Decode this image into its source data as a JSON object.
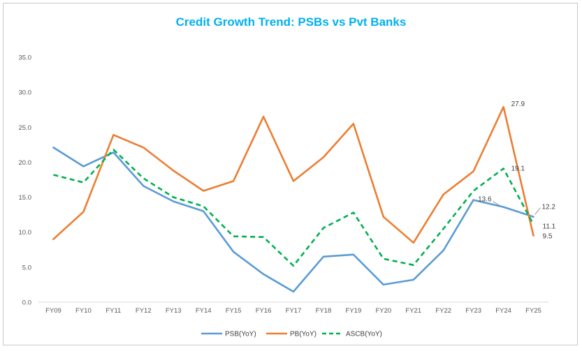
{
  "chart_data": {
    "type": "line",
    "title": "Credit Growth Trend: PSBs vs Pvt Banks",
    "xlabel": "",
    "ylabel": "",
    "ylim": [
      0,
      35
    ],
    "yticks": [
      "0.0",
      "5.0",
      "10.0",
      "15.0",
      "20.0",
      "25.0",
      "30.0",
      "35.0"
    ],
    "grid": false,
    "legend_position": "bottom",
    "categories": [
      "FY09",
      "FY10",
      "FY11",
      "FY12",
      "FY13",
      "FY14",
      "FY15",
      "FY16",
      "FY17",
      "FY18",
      "FY19",
      "FY20",
      "FY21",
      "FY22",
      "FY23",
      "FY24",
      "FY25"
    ],
    "series": [
      {
        "name": "PSB(YoY)",
        "color": "#5b9bd5",
        "dash": "solid",
        "values": [
          22.1,
          19.4,
          21.4,
          16.6,
          14.4,
          13.0,
          7.2,
          4.0,
          1.5,
          6.5,
          6.8,
          2.5,
          3.2,
          7.4,
          14.6,
          13.6,
          12.2
        ]
      },
      {
        "name": "PB(YoY)",
        "color": "#ed7d31",
        "dash": "solid",
        "values": [
          9.0,
          12.9,
          23.9,
          22.1,
          18.8,
          15.9,
          17.3,
          26.5,
          17.3,
          20.7,
          25.5,
          12.2,
          8.5,
          15.4,
          18.7,
          27.9,
          9.5
        ]
      },
      {
        "name": "ASCB(YoY)",
        "color": "#00b050",
        "dash": "dashed",
        "values": [
          18.2,
          17.1,
          21.8,
          17.7,
          15.0,
          13.7,
          9.4,
          9.3,
          5.2,
          10.6,
          12.8,
          6.2,
          5.3,
          10.5,
          15.9,
          19.1,
          11.1
        ]
      }
    ],
    "data_labels": [
      {
        "series": "PB(YoY)",
        "category": "FY24",
        "text": "27.9"
      },
      {
        "series": "ASCB(YoY)",
        "category": "FY24",
        "text": "19.1"
      },
      {
        "series": "PSB(YoY)",
        "category": "FY24",
        "text": "13.6"
      },
      {
        "series": "PSB(YoY)",
        "category": "FY25",
        "text": "12.2"
      },
      {
        "series": "ASCB(YoY)",
        "category": "FY25",
        "text": "11.1"
      },
      {
        "series": "PB(YoY)",
        "category": "FY25",
        "text": "9.5"
      }
    ]
  }
}
